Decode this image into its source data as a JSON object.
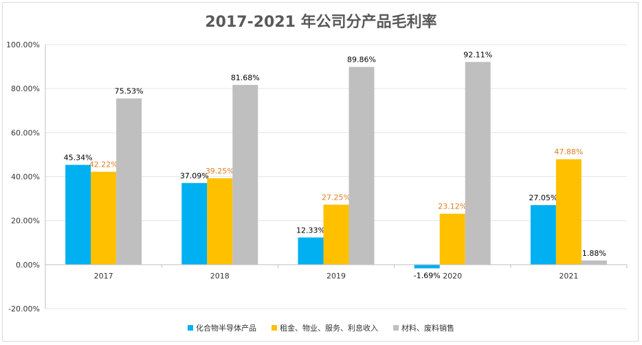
{
  "chart_data": {
    "type": "bar",
    "title": "2017-2021 年公司分产品毛利率",
    "categories": [
      "2017",
      "2018",
      "2019",
      "2020",
      "2021"
    ],
    "series": [
      {
        "name": "化合物半导体产品",
        "values": [
          45.34,
          37.09,
          12.33,
          -1.69,
          27.05
        ],
        "labels": [
          "45.34%",
          "37.09%",
          "12.33%",
          "-1.69%",
          "27.05%"
        ],
        "color": "#00b0f0",
        "label_color": "#000000"
      },
      {
        "name": "租金、物业、服务、利息收入",
        "values": [
          42.22,
          39.25,
          27.25,
          23.12,
          47.88
        ],
        "labels": [
          "42.22%",
          "39.25%",
          "27.25%",
          "23.12%",
          "47.88%"
        ],
        "color": "#ffc000",
        "label_color": "#e07b22"
      },
      {
        "name": "材料、废料销售",
        "values": [
          75.53,
          81.68,
          89.86,
          92.11,
          1.88
        ],
        "labels": [
          "75.53%",
          "81.68%",
          "89.86%",
          "92.11%",
          "1.88%"
        ],
        "color": "#bfbfbf",
        "label_color": "#000000"
      }
    ],
    "yticks": [
      "100.00%",
      "80.00%",
      "60.00%",
      "40.00%",
      "20.00%",
      "0.00%",
      "-20.00%"
    ],
    "ylim": [
      -20,
      100
    ],
    "grid": true,
    "legend_position": "bottom"
  }
}
